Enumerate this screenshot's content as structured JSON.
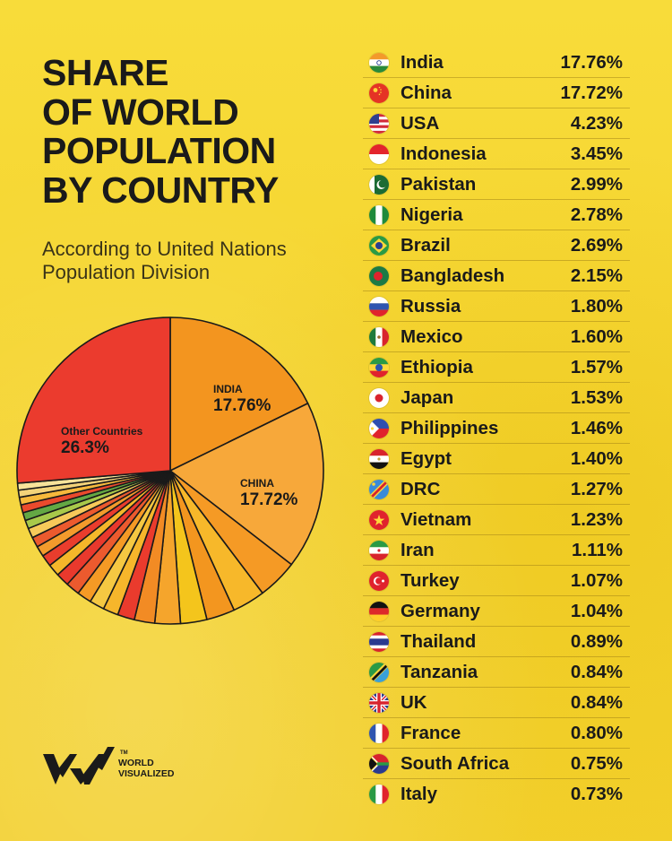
{
  "title": {
    "line1": "SHARE",
    "line2": "OF WORLD",
    "line3": "POPULATION",
    "line4": "BY COUNTRY"
  },
  "subtitle": {
    "line1": "According to United Nations",
    "line2": "Population Division"
  },
  "brand": {
    "line1": "WORLD",
    "line2": "VISUALIZED",
    "tm": "TM"
  },
  "chart_data": {
    "type": "pie",
    "title": "SHARE OF WORLD POPULATION BY COUNTRY",
    "unit": "%",
    "slices": [
      {
        "label": "India",
        "value": 17.76,
        "callout": "INDIA",
        "callout_value": "17.76%",
        "color": "#f3951f"
      },
      {
        "label": "China",
        "value": 17.72,
        "callout": "CHINA",
        "callout_value": "17.72%",
        "color": "#f7a83a"
      },
      {
        "label": "USA",
        "value": 4.23,
        "color": "#f59a25"
      },
      {
        "label": "Indonesia",
        "value": 3.45,
        "color": "#f7b82a"
      },
      {
        "label": "Pakistan",
        "value": 2.99,
        "color": "#f3961f"
      },
      {
        "label": "Nigeria",
        "value": 2.78,
        "color": "#f4c51c"
      },
      {
        "label": "Brazil",
        "value": 2.69,
        "color": "#f5a52c"
      },
      {
        "label": "Bangladesh",
        "value": 2.15,
        "color": "#f28b24"
      },
      {
        "label": "Russia",
        "value": 1.8,
        "color": "#ea3b2d"
      },
      {
        "label": "Mexico",
        "value": 1.6,
        "color": "#f6b62b"
      },
      {
        "label": "Ethiopia",
        "value": 1.57,
        "color": "#f5c842"
      },
      {
        "label": "Japan",
        "value": 1.53,
        "color": "#f59a25"
      },
      {
        "label": "Philippines",
        "value": 1.46,
        "color": "#ec5a2e"
      },
      {
        "label": "Egypt",
        "value": 1.4,
        "color": "#e9392d"
      },
      {
        "label": "DRC",
        "value": 1.27,
        "color": "#f5b72a"
      },
      {
        "label": "Vietnam",
        "value": 1.23,
        "color": "#e93d2d"
      },
      {
        "label": "Iran",
        "value": 1.11,
        "color": "#f39b2c"
      },
      {
        "label": "Turkey",
        "value": 1.07,
        "color": "#ec5a2e"
      },
      {
        "label": "Germany",
        "value": 1.04,
        "color": "#f7c95a"
      },
      {
        "label": "Thailand",
        "value": 0.89,
        "color": "#a8c94a"
      },
      {
        "label": "Tanzania",
        "value": 0.84,
        "color": "#63a844"
      },
      {
        "label": "UK",
        "value": 0.84,
        "color": "#ea4a2d"
      },
      {
        "label": "France",
        "value": 0.8,
        "color": "#f6b93c"
      },
      {
        "label": "South Africa",
        "value": 0.75,
        "color": "#f3d37a"
      },
      {
        "label": "Italy",
        "value": 0.73,
        "color": "#f8e39a"
      },
      {
        "label": "Other Countries",
        "value": 26.3,
        "callout": "Other Countries",
        "callout_value": "26.3%",
        "color": "#eb3b2e"
      }
    ]
  },
  "table": {
    "rows": [
      {
        "country": "India",
        "value": "17.76%",
        "flag": "india-flag-icon"
      },
      {
        "country": "China",
        "value": "17.72%",
        "flag": "china-flag-icon"
      },
      {
        "country": "USA",
        "value": "4.23%",
        "flag": "usa-flag-icon"
      },
      {
        "country": "Indonesia",
        "value": "3.45%",
        "flag": "indonesia-flag-icon"
      },
      {
        "country": "Pakistan",
        "value": "2.99%",
        "flag": "pakistan-flag-icon"
      },
      {
        "country": "Nigeria",
        "value": "2.78%",
        "flag": "nigeria-flag-icon"
      },
      {
        "country": "Brazil",
        "value": "2.69%",
        "flag": "brazil-flag-icon"
      },
      {
        "country": "Bangladesh",
        "value": "2.15%",
        "flag": "bangladesh-flag-icon"
      },
      {
        "country": "Russia",
        "value": "1.80%",
        "flag": "russia-flag-icon"
      },
      {
        "country": "Mexico",
        "value": "1.60%",
        "flag": "mexico-flag-icon"
      },
      {
        "country": "Ethiopia",
        "value": "1.57%",
        "flag": "ethiopia-flag-icon"
      },
      {
        "country": "Japan",
        "value": "1.53%",
        "flag": "japan-flag-icon"
      },
      {
        "country": "Philippines",
        "value": "1.46%",
        "flag": "philippines-flag-icon"
      },
      {
        "country": "Egypt",
        "value": "1.40%",
        "flag": "egypt-flag-icon"
      },
      {
        "country": "DRC",
        "value": "1.27%",
        "flag": "drc-flag-icon"
      },
      {
        "country": "Vietnam",
        "value": "1.23%",
        "flag": "vietnam-flag-icon"
      },
      {
        "country": "Iran",
        "value": "1.11%",
        "flag": "iran-flag-icon"
      },
      {
        "country": "Turkey",
        "value": "1.07%",
        "flag": "turkey-flag-icon"
      },
      {
        "country": "Germany",
        "value": "1.04%",
        "flag": "germany-flag-icon"
      },
      {
        "country": "Thailand",
        "value": "0.89%",
        "flag": "thailand-flag-icon"
      },
      {
        "country": "Tanzania",
        "value": "0.84%",
        "flag": "tanzania-flag-icon"
      },
      {
        "country": "UK",
        "value": "0.84%",
        "flag": "uk-flag-icon"
      },
      {
        "country": "France",
        "value": "0.80%",
        "flag": "france-flag-icon"
      },
      {
        "country": "South Africa",
        "value": "0.75%",
        "flag": "south-africa-flag-icon"
      },
      {
        "country": "Italy",
        "value": "0.73%",
        "flag": "italy-flag-icon"
      }
    ]
  }
}
